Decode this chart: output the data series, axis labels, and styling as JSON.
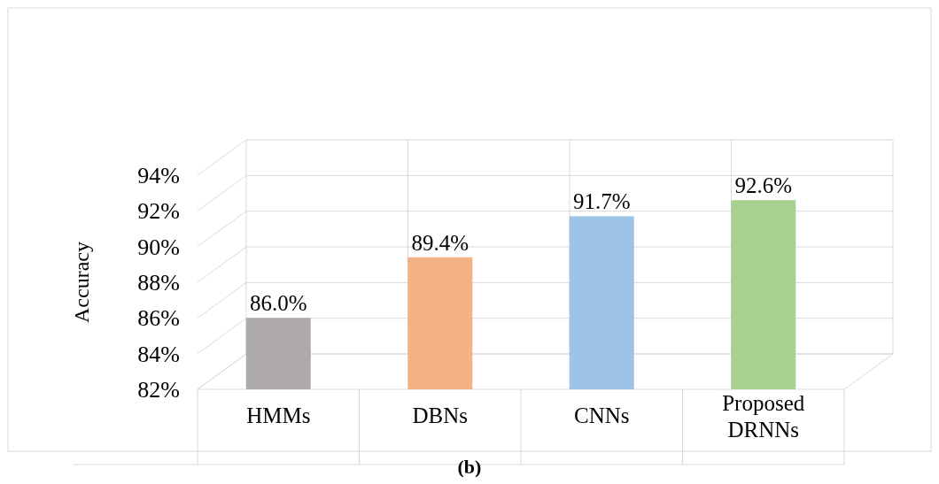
{
  "chart_data": {
    "type": "bar",
    "ylabel": "Accuracy",
    "categories": [
      "HMMs",
      "DBNs",
      "CNNs",
      "Proposed DRNNs"
    ],
    "values": [
      86.0,
      89.4,
      91.7,
      92.6
    ],
    "colors": [
      "#aeaaaa",
      "#f4b183",
      "#9dc3e6",
      "#a9d18e"
    ],
    "value_labels": [
      "86.0%",
      "89.4%",
      "91.7%",
      "92.6%"
    ],
    "ylim": [
      82,
      94
    ],
    "yticks": [
      {
        "value": 82,
        "label": "82%"
      },
      {
        "value": 84,
        "label": "84%"
      },
      {
        "value": 86,
        "label": "86%"
      },
      {
        "value": 88,
        "label": "88%"
      },
      {
        "value": 90,
        "label": "90%"
      },
      {
        "value": 92,
        "label": "92%"
      },
      {
        "value": 94,
        "label": "94%"
      }
    ],
    "grid": "y",
    "annotations": [
      "(b)"
    ]
  }
}
